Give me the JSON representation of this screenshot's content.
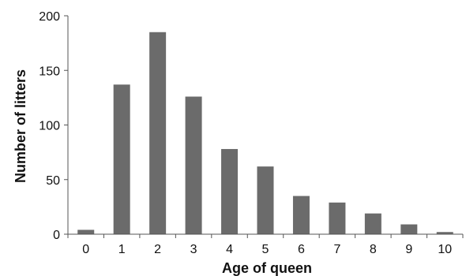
{
  "chart_data": {
    "type": "bar",
    "categories": [
      "0",
      "1",
      "2",
      "3",
      "4",
      "5",
      "6",
      "7",
      "8",
      "9",
      "10"
    ],
    "values": [
      4,
      137,
      185,
      126,
      78,
      62,
      35,
      29,
      19,
      9,
      2
    ],
    "xlabel": "Age of queen",
    "ylabel": "Number of litters",
    "ylim": [
      0,
      200
    ],
    "yticks": [
      "0",
      "50",
      "100",
      "150",
      "200"
    ],
    "grid": false,
    "legend": "none",
    "bar_color": "#6b6b6b",
    "axis_color": "#555555"
  }
}
